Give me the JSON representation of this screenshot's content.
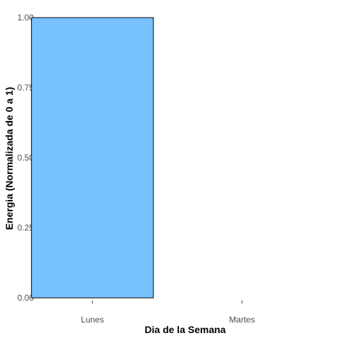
{
  "chart_data": {
    "type": "bar",
    "categories": [
      "Lunes",
      "Martes"
    ],
    "values": [
      1.0,
      0.0
    ],
    "xlabel": "Dia de la Semana",
    "ylabel": "Energia (Normalizada de 0 a 1)",
    "ylim": [
      0,
      1
    ],
    "yticks": [
      0.0,
      0.25,
      0.5,
      0.75,
      1.0
    ],
    "ytick_labels": [
      "0.00",
      "0.25",
      "0.50",
      "0.75",
      "1.00"
    ],
    "grid": false,
    "legend": "none",
    "colors": {
      "bar_fill": "#78C1FF",
      "bar_stroke": "#000000",
      "axis_text": "#4d4d4d",
      "background": "#ffffff"
    }
  }
}
